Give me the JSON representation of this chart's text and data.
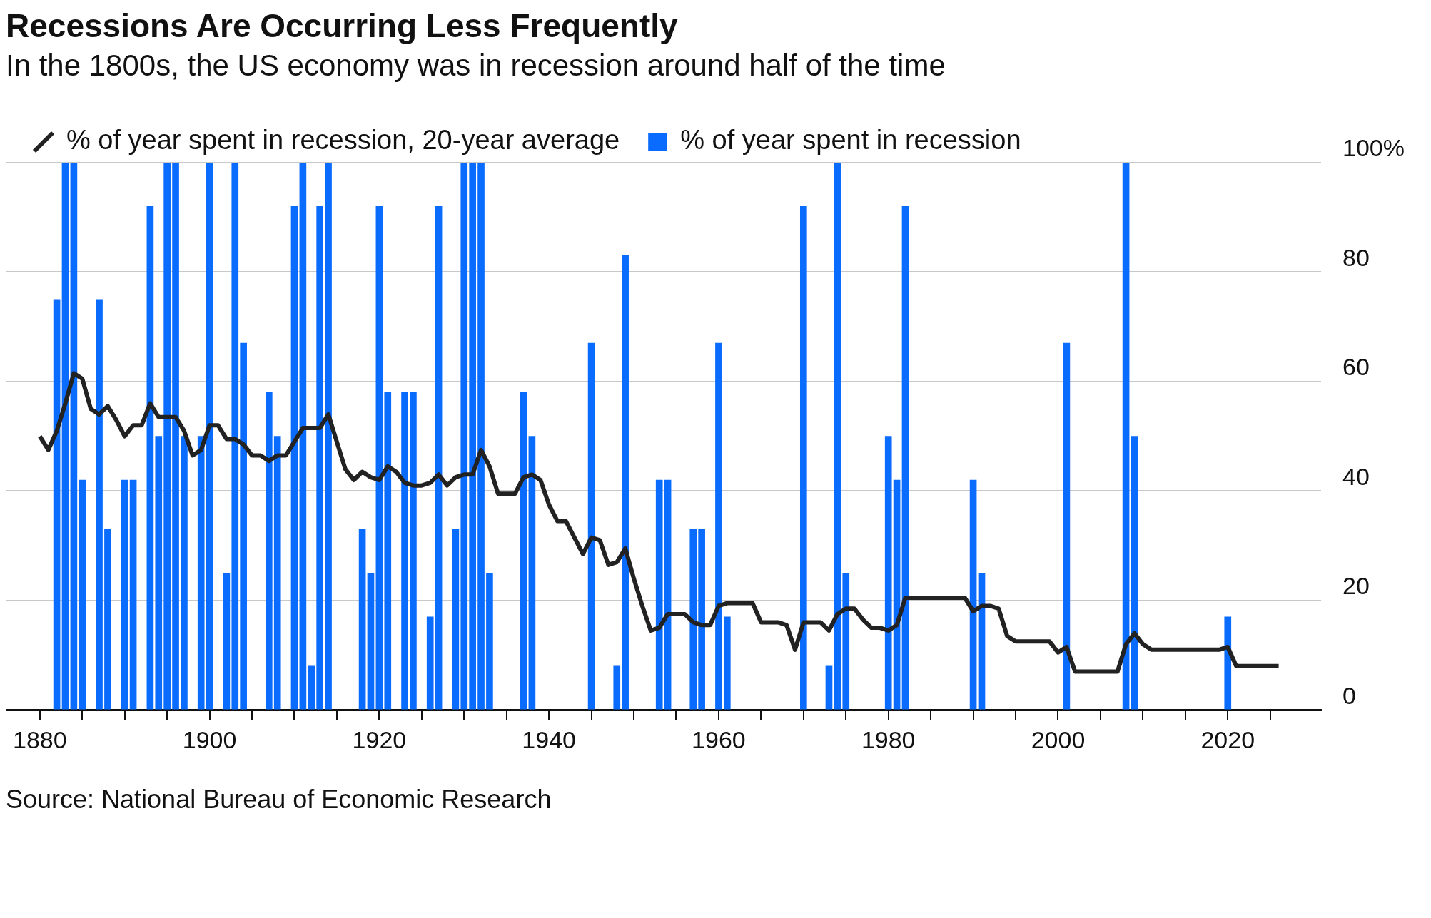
{
  "chart_data": {
    "type": "bar",
    "title": "Recessions Are Occurring Less Frequently",
    "subtitle": "In the 1800s, the US economy was in recession around half of the time",
    "annotations": [
      "Source: National Bureau of Economic Research"
    ],
    "xlim": [
      1876,
      2031
    ],
    "xticks": [
      {
        "value": 1880,
        "label": "1880"
      },
      {
        "value": 1885,
        "label": null
      },
      {
        "value": 1890,
        "label": null
      },
      {
        "value": 1895,
        "label": null
      },
      {
        "value": 1900,
        "label": "1900"
      },
      {
        "value": 1905,
        "label": null
      },
      {
        "value": 1910,
        "label": null
      },
      {
        "value": 1915,
        "label": null
      },
      {
        "value": 1920,
        "label": "1920"
      },
      {
        "value": 1925,
        "label": null
      },
      {
        "value": 1930,
        "label": null
      },
      {
        "value": 1935,
        "label": null
      },
      {
        "value": 1940,
        "label": "1940"
      },
      {
        "value": 1945,
        "label": null
      },
      {
        "value": 1950,
        "label": null
      },
      {
        "value": 1955,
        "label": null
      },
      {
        "value": 1960,
        "label": "1960"
      },
      {
        "value": 1965,
        "label": null
      },
      {
        "value": 1970,
        "label": null
      },
      {
        "value": 1975,
        "label": null
      },
      {
        "value": 1980,
        "label": "1980"
      },
      {
        "value": 1985,
        "label": null
      },
      {
        "value": 1990,
        "label": null
      },
      {
        "value": 1995,
        "label": null
      },
      {
        "value": 2000,
        "label": "2000"
      },
      {
        "value": 2005,
        "label": null
      },
      {
        "value": 2010,
        "label": null
      },
      {
        "value": 2015,
        "label": null
      },
      {
        "value": 2020,
        "label": "2020"
      },
      {
        "value": 2025,
        "label": null
      }
    ],
    "ylim": [
      0,
      100
    ],
    "yticks": [
      0,
      20,
      40,
      60,
      80,
      {
        "value": 100,
        "label": "100%"
      }
    ],
    "grid": "y",
    "legend": "top left",
    "series": [
      {
        "name": "% of year spent in recession, 20-year average",
        "type": "line",
        "color": "#222222",
        "x": [
          1880,
          1881,
          1882,
          1883,
          1884,
          1885,
          1886,
          1887,
          1888,
          1889,
          1890,
          1891,
          1892,
          1893,
          1894,
          1895,
          1896,
          1897,
          1898,
          1899,
          1900,
          1901,
          1902,
          1903,
          1904,
          1905,
          1906,
          1907,
          1908,
          1909,
          1910,
          1911,
          1912,
          1913,
          1914,
          1915,
          1916,
          1917,
          1918,
          1919,
          1920,
          1921,
          1922,
          1923,
          1924,
          1925,
          1926,
          1927,
          1928,
          1929,
          1930,
          1931,
          1932,
          1933,
          1934,
          1935,
          1936,
          1937,
          1938,
          1939,
          1940,
          1941,
          1942,
          1943,
          1944,
          1945,
          1946,
          1947,
          1948,
          1949,
          1950,
          1951,
          1952,
          1953,
          1954,
          1955,
          1956,
          1957,
          1958,
          1959,
          1960,
          1961,
          1962,
          1963,
          1964,
          1965,
          1966,
          1967,
          1968,
          1969,
          1970,
          1971,
          1972,
          1973,
          1974,
          1975,
          1976,
          1977,
          1978,
          1979,
          1980,
          1981,
          1982,
          1983,
          1984,
          1985,
          1986,
          1987,
          1988,
          1989,
          1990,
          1991,
          1992,
          1993,
          1994,
          1995,
          1996,
          1997,
          1998,
          1999,
          2000,
          2001,
          2002,
          2003,
          2004,
          2005,
          2006,
          2007,
          2008,
          2009,
          2010,
          2011,
          2012,
          2013,
          2014,
          2015,
          2016,
          2017,
          2018,
          2019,
          2020,
          2021,
          2022,
          2023,
          2024,
          2025,
          2026
        ],
        "values": [
          50,
          47.5,
          51,
          56,
          61.5,
          60.5,
          55,
          54,
          55.5,
          53,
          50,
          52,
          52,
          56,
          53.5,
          53.5,
          53.5,
          51,
          46.5,
          47.5,
          52,
          52,
          49.5,
          49.5,
          48.5,
          46.5,
          46.5,
          45.5,
          46.5,
          46.5,
          49,
          51.5,
          51.5,
          51.5,
          54,
          49,
          44,
          42,
          43.5,
          42.5,
          42,
          44.5,
          43.5,
          41.5,
          41,
          41,
          41.5,
          43,
          41,
          42.5,
          43,
          43,
          47.5,
          44.5,
          39.5,
          39.5,
          39.5,
          42.5,
          43,
          42,
          37.5,
          34.5,
          34.5,
          31.5,
          28.5,
          31.5,
          31,
          26.5,
          27,
          29.5,
          24,
          19,
          14.5,
          15,
          17.5,
          17.5,
          17.5,
          16,
          15.5,
          15.5,
          19,
          19.5,
          19.5,
          19.5,
          19.5,
          16,
          16,
          16,
          15.5,
          11,
          16,
          16,
          16,
          14.5,
          17.5,
          18.5,
          18.5,
          16.5,
          15,
          15,
          14.5,
          15.5,
          20.5,
          20.5,
          20.5,
          20.5,
          20.5,
          20.5,
          20.5,
          20.5,
          18,
          19,
          19,
          18.5,
          13.5,
          12.5,
          12.5,
          12.5,
          12.5,
          12.5,
          10.5,
          11.5,
          7,
          7,
          7,
          7,
          7,
          7,
          12,
          14,
          12,
          11,
          11,
          11,
          11,
          11,
          11,
          11,
          11,
          11,
          11.5,
          8,
          8,
          8,
          8,
          8,
          8
        ]
      },
      {
        "name": "% of year spent in recession",
        "color": "#0a6cff",
        "x": [
          1882,
          1883,
          1884,
          1885,
          1887,
          1888,
          1890,
          1891,
          1893,
          1894,
          1895,
          1896,
          1897,
          1899,
          1900,
          1902,
          1903,
          1904,
          1907,
          1908,
          1910,
          1911,
          1912,
          1913,
          1914,
          1918,
          1919,
          1920,
          1921,
          1923,
          1924,
          1926,
          1927,
          1929,
          1930,
          1931,
          1932,
          1933,
          1937,
          1938,
          1945,
          1948,
          1949,
          1953,
          1954,
          1957,
          1958,
          1960,
          1961,
          1970,
          1973,
          1974,
          1975,
          1980,
          1981,
          1982,
          1990,
          1991,
          2001,
          2008,
          2009,
          2020
        ],
        "values": [
          75,
          100,
          100,
          42,
          75,
          33,
          42,
          42,
          92,
          50,
          100,
          100,
          50,
          50,
          100,
          25,
          100,
          67,
          58,
          50,
          92,
          100,
          8,
          92,
          100,
          33,
          25,
          92,
          58,
          58,
          58,
          17,
          92,
          33,
          100,
          100,
          100,
          25,
          58,
          50,
          67,
          8,
          83,
          42,
          42,
          33,
          33,
          67,
          17,
          92,
          8,
          100,
          25,
          50,
          42,
          92,
          42,
          25,
          67,
          100,
          50,
          17
        ]
      }
    ]
  }
}
